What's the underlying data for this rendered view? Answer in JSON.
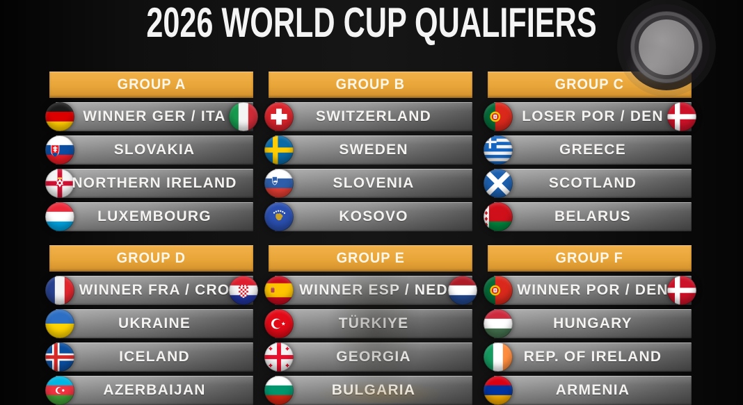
{
  "title": "2026 WORLD CUP QUALIFIERS",
  "floating_button": {
    "icon": "record-circle-icon"
  },
  "colors": {
    "accent_gold": "#E8A538",
    "row_gray_top": "#9E9E9E",
    "row_gray_bottom": "#4A4A4A",
    "background": "#0B0B0B",
    "title_text": "#F4F4F4",
    "header_text": "#FDF7EA"
  },
  "groups": [
    {
      "label": "GROUP A",
      "teams": [
        {
          "name": "WINNER GER / ITA",
          "flag": "germany",
          "flag_right": "italy"
        },
        {
          "name": "SLOVAKIA",
          "flag": "slovakia"
        },
        {
          "name": "NORTHERN IRELAND",
          "flag": "northern-ireland"
        },
        {
          "name": "LUXEMBOURG",
          "flag": "luxembourg"
        }
      ]
    },
    {
      "label": "GROUP B",
      "teams": [
        {
          "name": "SWITZERLAND",
          "flag": "switzerland"
        },
        {
          "name": "SWEDEN",
          "flag": "sweden"
        },
        {
          "name": "SLOVENIA",
          "flag": "slovenia"
        },
        {
          "name": "KOSOVO",
          "flag": "kosovo"
        }
      ]
    },
    {
      "label": "GROUP C",
      "teams": [
        {
          "name": "LOSER POR / DEN",
          "flag": "portugal",
          "flag_right": "denmark"
        },
        {
          "name": "GREECE",
          "flag": "greece"
        },
        {
          "name": "SCOTLAND",
          "flag": "scotland"
        },
        {
          "name": "BELARUS",
          "flag": "belarus"
        }
      ]
    },
    {
      "label": "GROUP D",
      "teams": [
        {
          "name": "WINNER FRA / CRO",
          "flag": "france",
          "flag_right": "croatia"
        },
        {
          "name": "UKRAINE",
          "flag": "ukraine"
        },
        {
          "name": "ICELAND",
          "flag": "iceland"
        },
        {
          "name": "AZERBAIJAN",
          "flag": "azerbaijan"
        }
      ]
    },
    {
      "label": "GROUP E",
      "teams": [
        {
          "name": "WINNER ESP / NED",
          "flag": "spain",
          "flag_right": "netherlands"
        },
        {
          "name": "TÜRKIYE",
          "flag": "turkiye"
        },
        {
          "name": "GEORGIA",
          "flag": "georgia"
        },
        {
          "name": "BULGARIA",
          "flag": "bulgaria"
        }
      ]
    },
    {
      "label": "GROUP F",
      "teams": [
        {
          "name": "WINNER POR / DEN",
          "flag": "portugal",
          "flag_right": "denmark"
        },
        {
          "name": "HUNGARY",
          "flag": "hungary"
        },
        {
          "name": "REP. OF IRELAND",
          "flag": "ireland"
        },
        {
          "name": "ARMENIA",
          "flag": "armenia"
        }
      ]
    }
  ]
}
